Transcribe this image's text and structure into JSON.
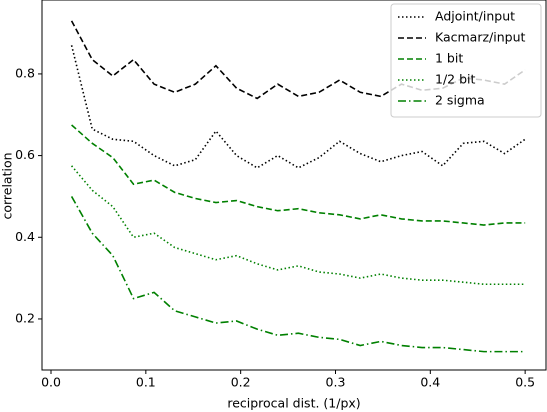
{
  "chart_data": {
    "type": "line",
    "xlabel": "reciprocal dist. (1/px)",
    "ylabel": "correlation",
    "x": [
      0.0217,
      0.0435,
      0.0652,
      0.087,
      0.1087,
      0.1304,
      0.1522,
      0.1739,
      0.1957,
      0.2174,
      0.2391,
      0.2609,
      0.2826,
      0.3043,
      0.3261,
      0.3478,
      0.3696,
      0.3913,
      0.413,
      0.4348,
      0.4565,
      0.4783,
      0.5
    ],
    "series": [
      {
        "name": "Adjoint/input",
        "color": "#000000",
        "linestyle": "dotted",
        "values": [
          0.87,
          0.665,
          0.64,
          0.635,
          0.6,
          0.575,
          0.59,
          0.66,
          0.6,
          0.57,
          0.6,
          0.57,
          0.595,
          0.635,
          0.605,
          0.585,
          0.6,
          0.61,
          0.575,
          0.63,
          0.635,
          0.605,
          0.64
        ]
      },
      {
        "name": "Kacmarz/input",
        "color": "#000000",
        "linestyle": "dashed",
        "values": [
          0.93,
          0.835,
          0.795,
          0.835,
          0.775,
          0.755,
          0.775,
          0.82,
          0.765,
          0.74,
          0.775,
          0.745,
          0.755,
          0.785,
          0.755,
          0.745,
          0.775,
          0.76,
          0.765,
          0.79,
          0.785,
          0.775,
          0.81
        ]
      },
      {
        "name": "1 bit",
        "color": "#008000",
        "linestyle": "dashed",
        "values": [
          0.675,
          0.63,
          0.595,
          0.53,
          0.54,
          0.51,
          0.495,
          0.485,
          0.49,
          0.475,
          0.465,
          0.47,
          0.46,
          0.455,
          0.445,
          0.455,
          0.445,
          0.44,
          0.44,
          0.435,
          0.43,
          0.435,
          0.435
        ]
      },
      {
        "name": "1/2 bit",
        "color": "#008000",
        "linestyle": "dotted",
        "values": [
          0.575,
          0.515,
          0.475,
          0.4,
          0.41,
          0.375,
          0.36,
          0.345,
          0.355,
          0.335,
          0.32,
          0.33,
          0.315,
          0.31,
          0.3,
          0.31,
          0.3,
          0.295,
          0.295,
          0.29,
          0.285,
          0.285,
          0.285
        ]
      },
      {
        "name": "2 sigma",
        "color": "#008000",
        "linestyle": "dashdot",
        "values": [
          0.5,
          0.41,
          0.355,
          0.25,
          0.265,
          0.22,
          0.205,
          0.19,
          0.195,
          0.175,
          0.16,
          0.165,
          0.155,
          0.15,
          0.135,
          0.145,
          0.135,
          0.13,
          0.13,
          0.125,
          0.12,
          0.12,
          0.12
        ]
      }
    ],
    "xlim": [
      -0.0095,
      0.522
    ],
    "ylim": [
      0.075,
      0.981
    ],
    "xticks": [
      {
        "value": 0,
        "label": "0.0"
      },
      0.1,
      0.2,
      0.3,
      0.4,
      0.5
    ],
    "yticks": [
      0.2,
      0.4,
      0.6,
      0.8
    ],
    "legend": "upper right"
  }
}
